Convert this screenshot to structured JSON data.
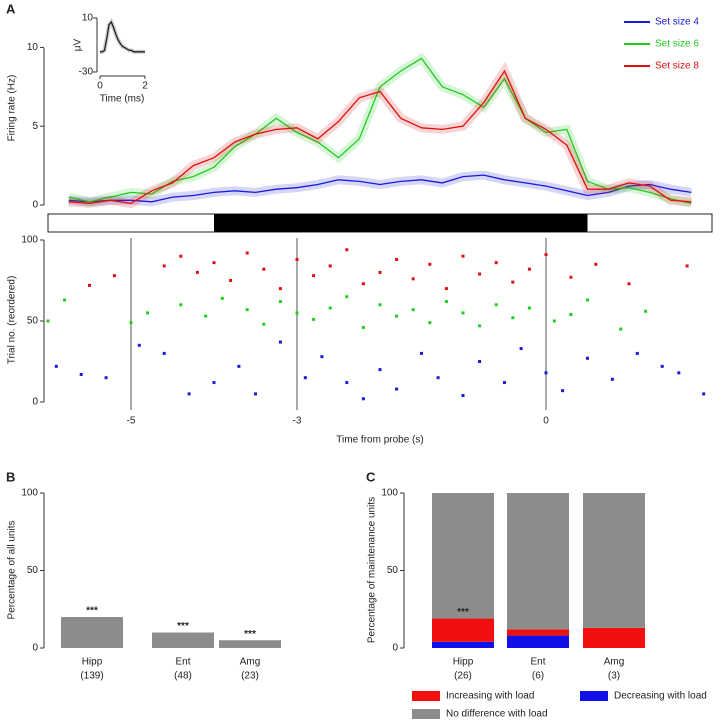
{
  "chart_data": [
    {
      "type": "line",
      "panel": "A",
      "ylabel": "Firing rate (Hz)",
      "x": [
        -5.75,
        -5.5,
        -5.25,
        -5,
        -4.75,
        -4.5,
        -4.25,
        -4,
        -3.75,
        -3.5,
        -3.25,
        -3,
        -2.75,
        -2.5,
        -2.25,
        -2,
        -1.75,
        -1.5,
        -1.25,
        -1,
        -0.75,
        -0.5,
        -0.25,
        0,
        0.25,
        0.5,
        0.75,
        1,
        1.25,
        1.5,
        1.75
      ],
      "series": [
        {
          "name": "Set size 4",
          "color": "#1a1adb",
          "values": [
            0.3,
            0.2,
            0.3,
            0.3,
            0.2,
            0.5,
            0.6,
            0.8,
            0.9,
            0.8,
            1.0,
            1.1,
            1.3,
            1.6,
            1.5,
            1.3,
            1.5,
            1.6,
            1.4,
            1.8,
            1.9,
            1.6,
            1.4,
            1.2,
            0.9,
            0.6,
            0.8,
            1.2,
            1.3,
            1.0,
            0.8
          ]
        },
        {
          "name": "Set size 6",
          "color": "#22cc22",
          "values": [
            0.5,
            0.2,
            0.5,
            0.8,
            0.7,
            1.5,
            1.8,
            2.4,
            3.7,
            4.5,
            5.5,
            4.6,
            4.0,
            3.0,
            4.2,
            7.5,
            8.5,
            9.3,
            7.5,
            7.0,
            6.2,
            8.0,
            5.5,
            4.6,
            4.8,
            1.5,
            1.0,
            1.1,
            0.8,
            0.4,
            0.1
          ]
        },
        {
          "name": "Set size 8",
          "color": "#e01010",
          "values": [
            0.2,
            0.1,
            0.3,
            0.1,
            0.9,
            1.4,
            2.5,
            3.0,
            4.0,
            4.5,
            4.8,
            4.9,
            4.2,
            5.3,
            6.8,
            7.2,
            5.5,
            4.9,
            4.8,
            5.0,
            6.5,
            8.5,
            5.5,
            4.8,
            3.8,
            1.0,
            1.0,
            1.4,
            1.2,
            0.3,
            0.2
          ]
        }
      ],
      "xlim": [
        -6,
        2
      ],
      "ylim": [
        0,
        12.5
      ],
      "yticks": [
        0,
        5,
        10
      ],
      "maintenance_bar": [
        -4,
        0.5
      ],
      "legend": "top-right"
    },
    {
      "type": "line",
      "ylabel": "μV",
      "xlabel": "Time (ms)",
      "x": [
        0,
        0.1,
        0.2,
        0.3,
        0.4,
        0.5,
        0.6,
        0.7,
        0.8,
        0.9,
        1.0,
        1.1,
        1.2,
        1.3,
        1.4,
        1.5,
        1.6,
        1.7,
        1.8,
        1.9,
        2.0
      ],
      "values": [
        -15,
        -15,
        -14,
        -5,
        5,
        7,
        3,
        -2,
        -6,
        -9,
        -11,
        -12,
        -13,
        -14,
        -14,
        -15,
        -15,
        -15,
        -15,
        -15,
        -15
      ],
      "color": "#222222",
      "xlim": [
        0,
        2
      ],
      "xticks": [
        0,
        2
      ],
      "ylim": [
        -30,
        10
      ],
      "yticks": [
        -30,
        10
      ]
    },
    {
      "type": "scatter",
      "ylabel": "Trial no. (reordered)",
      "xlabel": "Time from probe (s)",
      "xlim": [
        -6,
        2
      ],
      "xticks": [
        -5,
        -3,
        0
      ],
      "ylim": [
        0,
        100
      ],
      "yticks": [
        0,
        50,
        100
      ],
      "tick_lines": true,
      "series": [
        {
          "color": "#e01010",
          "x": [
            -5.5,
            -5.2,
            -4.6,
            -4.4,
            -4.2,
            -4.0,
            -3.8,
            -3.6,
            -3.4,
            -3.2,
            -3.0,
            -2.8,
            -2.6,
            -2.4,
            -2.2,
            -2.0,
            -1.8,
            -1.6,
            -1.4,
            -1.2,
            -1.0,
            -0.8,
            -0.6,
            -0.4,
            -0.2,
            0.0,
            0.3,
            0.6,
            1.0,
            1.7
          ],
          "y": [
            72,
            78,
            84,
            90,
            80,
            86,
            75,
            92,
            82,
            70,
            88,
            78,
            84,
            94,
            73,
            80,
            88,
            76,
            85,
            70,
            90,
            79,
            86,
            74,
            82,
            91,
            77,
            85,
            73,
            84
          ]
        },
        {
          "color": "#22cc22",
          "x": [
            -6.0,
            -5.8,
            -5.0,
            -4.8,
            -4.4,
            -4.1,
            -3.9,
            -3.6,
            -3.4,
            -3.2,
            -3.0,
            -2.8,
            -2.6,
            -2.4,
            -2.2,
            -2.0,
            -1.8,
            -1.6,
            -1.4,
            -1.2,
            -1.0,
            -0.8,
            -0.6,
            -0.4,
            -0.2,
            0.1,
            0.3,
            0.5,
            0.9,
            1.2
          ],
          "y": [
            50,
            63,
            49,
            55,
            60,
            53,
            64,
            57,
            48,
            62,
            55,
            51,
            58,
            65,
            46,
            60,
            53,
            57,
            49,
            62,
            55,
            47,
            60,
            52,
            58,
            50,
            54,
            63,
            45,
            56
          ]
        },
        {
          "color": "#1a1adb",
          "x": [
            -5.9,
            -5.6,
            -5.3,
            -4.9,
            -4.6,
            -4.3,
            -4.0,
            -3.7,
            -3.5,
            -3.2,
            -2.9,
            -2.7,
            -2.4,
            -2.2,
            -2.0,
            -1.8,
            -1.5,
            -1.3,
            -1.0,
            -0.8,
            -0.5,
            -0.3,
            0.0,
            0.2,
            0.5,
            0.8,
            1.1,
            1.4,
            1.6,
            1.9
          ],
          "y": [
            22,
            17,
            15,
            35,
            30,
            5,
            12,
            22,
            5,
            37,
            15,
            28,
            12,
            2,
            20,
            8,
            30,
            15,
            4,
            25,
            12,
            33,
            18,
            7,
            27,
            14,
            30,
            22,
            18,
            5
          ]
        }
      ]
    },
    {
      "type": "bar",
      "panel": "B",
      "ylabel": "Percentage of all units",
      "categories": [
        "Hipp",
        "Ent",
        "Amg"
      ],
      "counts": [
        "(139)",
        "(48)",
        "(23)"
      ],
      "values": [
        20,
        10,
        5
      ],
      "annotations": [
        "***",
        "***",
        "***"
      ],
      "color": "#8c8c8c",
      "ylim": [
        0,
        100
      ],
      "yticks": [
        0,
        50,
        100
      ]
    },
    {
      "type": "stacked_bar",
      "panel": "C",
      "ylabel": "Percentage of maintenance units",
      "categories": [
        "Hipp",
        "Ent",
        "Amg"
      ],
      "counts": [
        "(26)",
        "(6)",
        "(3)"
      ],
      "series": [
        {
          "name": "Decreasing with load",
          "color": "#1010e8",
          "values": [
            4,
            8,
            0
          ]
        },
        {
          "name": "Increasing with load",
          "color": "#f01010",
          "values": [
            15,
            4,
            13
          ]
        },
        {
          "name": "No difference with load",
          "color": "#8c8c8c",
          "values": [
            81,
            88,
            87
          ]
        }
      ],
      "annotations": [
        "***",
        null,
        null
      ],
      "ylim": [
        0,
        100
      ],
      "yticks": [
        0,
        50,
        100
      ]
    }
  ]
}
